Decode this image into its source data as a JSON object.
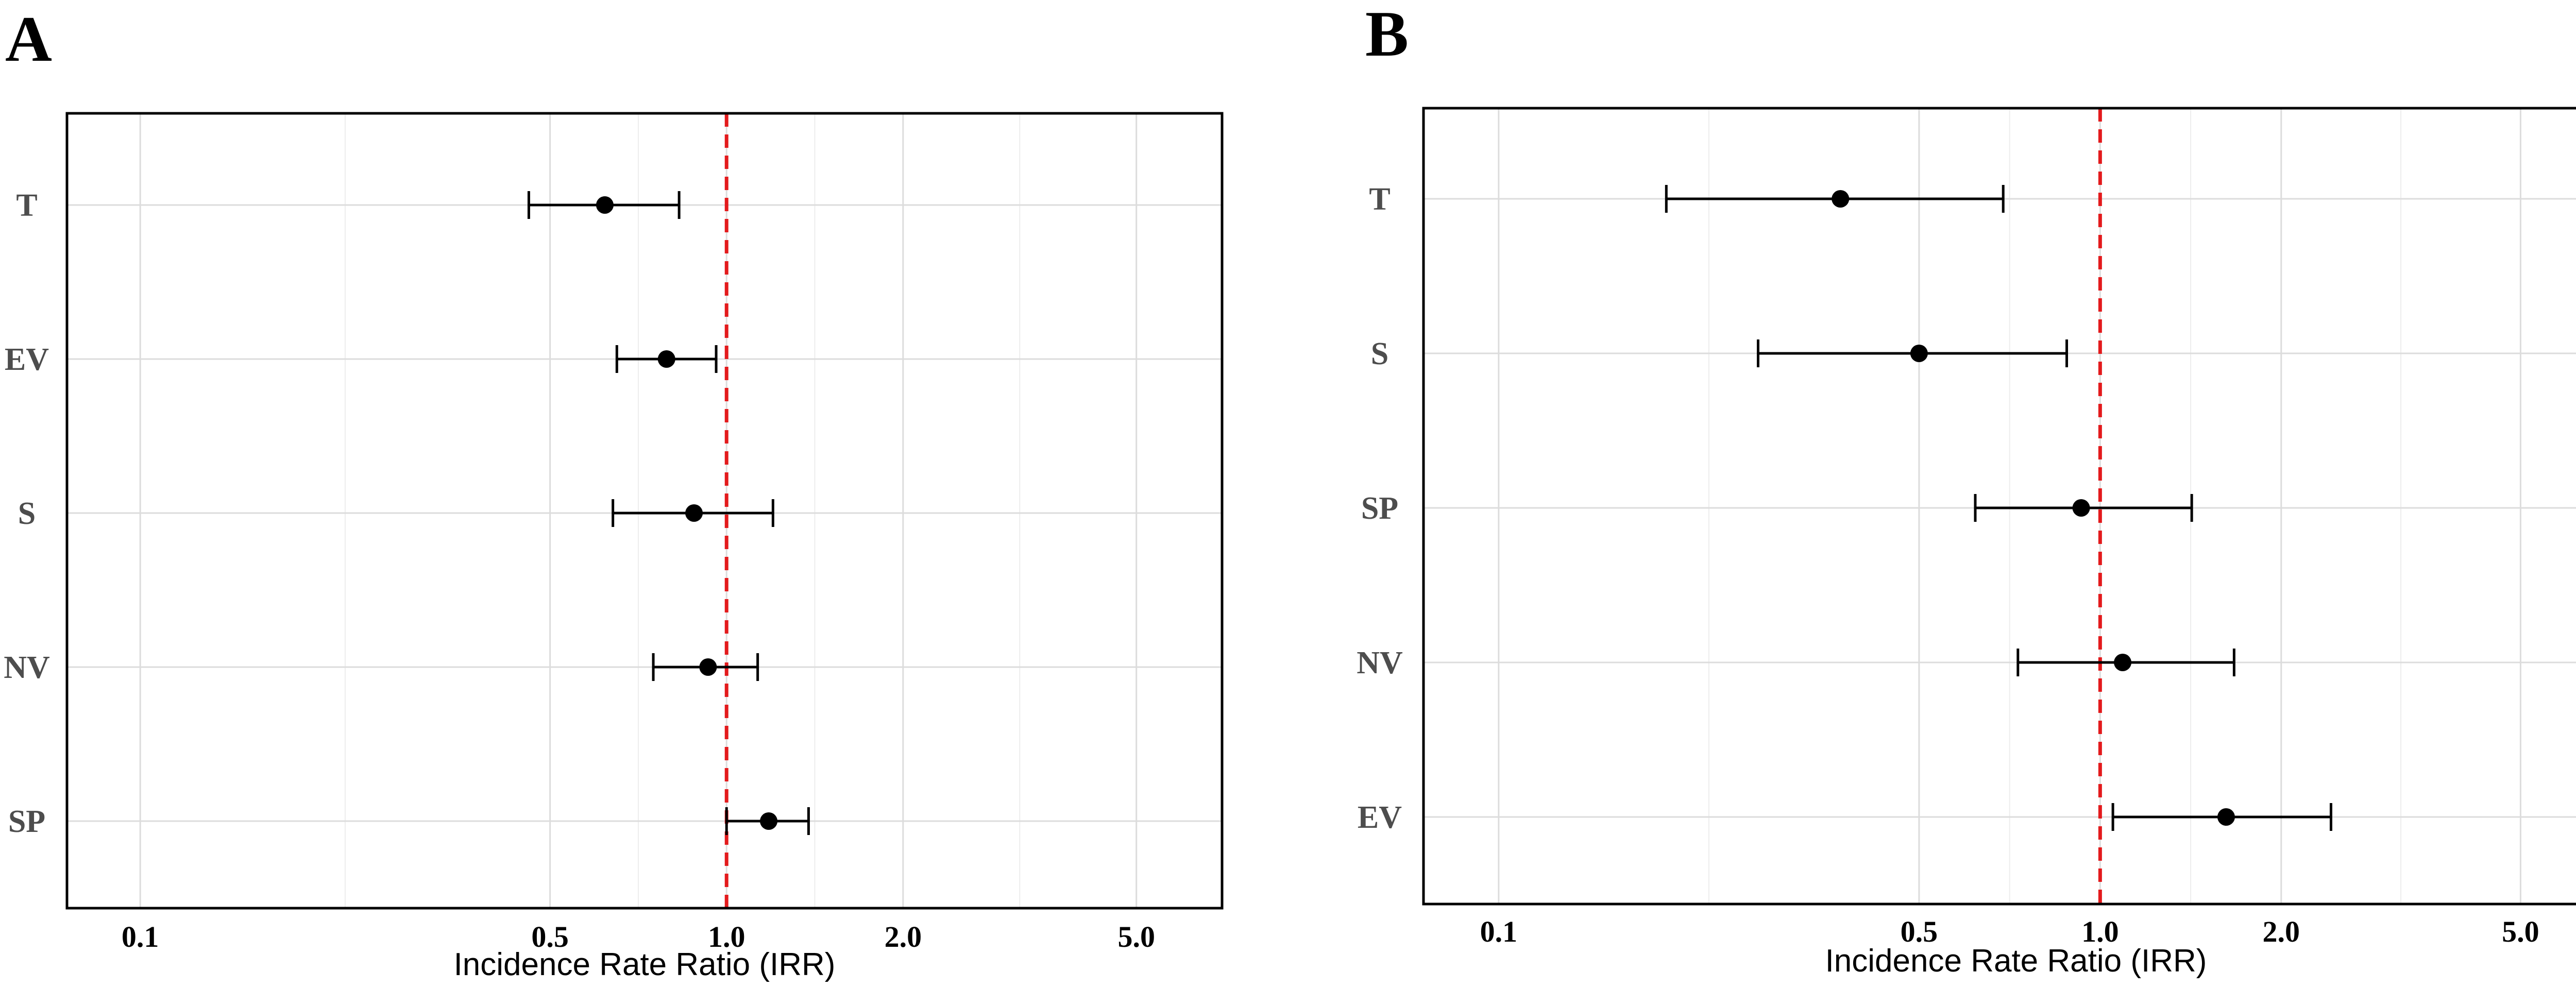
{
  "chart_data": [
    {
      "panel": "A",
      "type": "forest",
      "xlabel": "Incidence Rate Ratio (IRR)",
      "x_scale": "log",
      "xlim": [
        0.075,
        7.0
      ],
      "xticks": [
        0.1,
        0.5,
        1.0,
        2.0,
        5.0
      ],
      "xtick_labels": [
        "0.1",
        "0.5",
        "1.0",
        "2.0",
        "5.0"
      ],
      "reference_line": 1.0,
      "grid": true,
      "categories": [
        "T",
        "EV",
        "S",
        "NV",
        "SP"
      ],
      "estimates": [
        0.62,
        0.79,
        0.88,
        0.93,
        1.18
      ],
      "ci_lower": [
        0.46,
        0.65,
        0.64,
        0.75,
        1.0
      ],
      "ci_upper": [
        0.83,
        0.96,
        1.2,
        1.13,
        1.38
      ]
    },
    {
      "panel": "B",
      "type": "forest",
      "xlabel": "Incidence Rate Ratio (IRR)",
      "x_scale": "log",
      "xlim": [
        0.075,
        7.0
      ],
      "xticks": [
        0.1,
        0.5,
        1.0,
        2.0,
        5.0
      ],
      "xtick_labels": [
        "0.1",
        "0.5",
        "1.0",
        "2.0",
        "5.0"
      ],
      "reference_line": 1.0,
      "grid": true,
      "categories": [
        "T",
        "S",
        "SP",
        "NV",
        "EV"
      ],
      "estimates": [
        0.37,
        0.5,
        0.93,
        1.09,
        1.62
      ],
      "ci_lower": [
        0.19,
        0.27,
        0.62,
        0.73,
        1.05
      ],
      "ci_upper": [
        0.69,
        0.88,
        1.42,
        1.67,
        2.42
      ]
    }
  ],
  "colors": {
    "reference_line": "#e31a1c",
    "point": "#000000",
    "grid": "#dcdcdc",
    "category_text": "#4d4d4d"
  }
}
